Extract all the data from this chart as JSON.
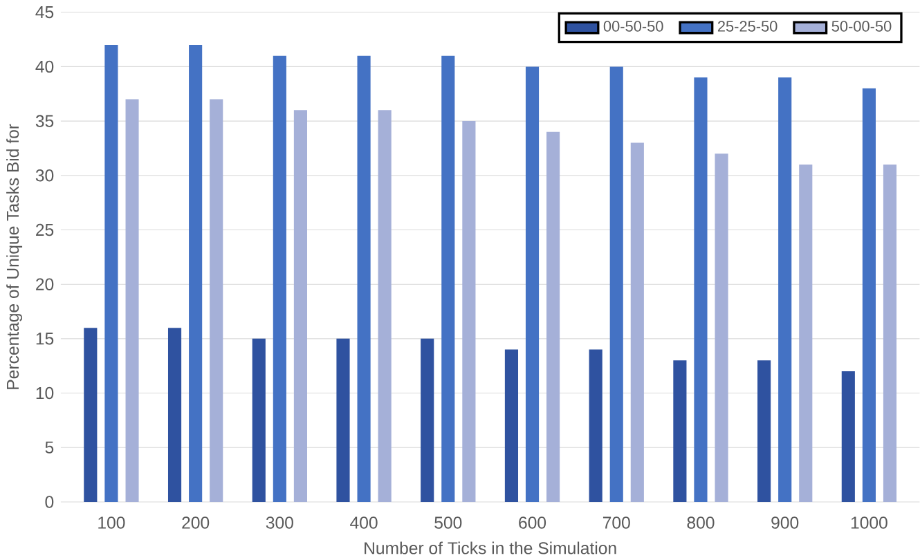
{
  "chart_data": {
    "type": "bar",
    "xlabel": "Number of Ticks in the Simulation",
    "ylabel": "Percentage of Unique Tasks Bid for",
    "categories": [
      "100",
      "200",
      "300",
      "400",
      "500",
      "600",
      "700",
      "800",
      "900",
      "1000"
    ],
    "series": [
      {
        "name": "00-50-50",
        "color": "#2f52a0",
        "values": [
          16,
          16,
          15,
          15,
          15,
          14,
          14,
          13,
          13,
          12
        ]
      },
      {
        "name": "25-25-50",
        "color": "#4472c4",
        "values": [
          42,
          42,
          41,
          41,
          41,
          40,
          40,
          39,
          39,
          38
        ]
      },
      {
        "name": "50-00-50",
        "color": "#a5b0d8",
        "values": [
          37,
          37,
          36,
          36,
          35,
          34,
          33,
          32,
          31,
          31
        ]
      }
    ],
    "ylim": [
      0,
      45
    ],
    "yticks": [
      0,
      5,
      10,
      15,
      20,
      25,
      30,
      35,
      40,
      45
    ],
    "grid": "y",
    "legend": "top right"
  }
}
